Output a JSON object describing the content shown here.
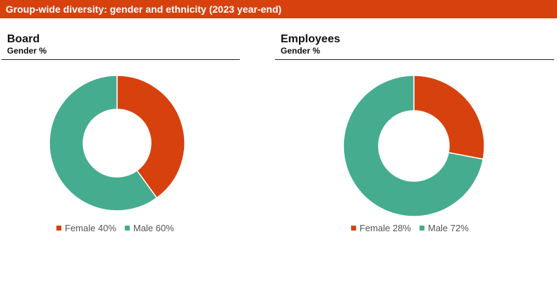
{
  "header": {
    "title": "Group-wide diversity: gender and ethnicity (2023 year-end)"
  },
  "colors": {
    "banner": "#D6410E",
    "female": "#D6410E",
    "male": "#45AC8F"
  },
  "chart_data": [
    {
      "type": "pie",
      "title": "Board",
      "subtitle": "Gender %",
      "categories": [
        "Female",
        "Male"
      ],
      "values": [
        40,
        60
      ],
      "legend_labels": [
        "Female 40%",
        "Male 60%"
      ],
      "colors": [
        "#D6410E",
        "#45AC8F"
      ],
      "style": "donut",
      "legend": "bottom"
    },
    {
      "type": "pie",
      "title": "Employees",
      "subtitle": "Gender %",
      "categories": [
        "Female",
        "Male"
      ],
      "values": [
        28,
        72
      ],
      "legend_labels": [
        "Female 28%",
        "Male 72%"
      ],
      "colors": [
        "#D6410E",
        "#45AC8F"
      ],
      "style": "donut",
      "legend": "bottom"
    }
  ]
}
